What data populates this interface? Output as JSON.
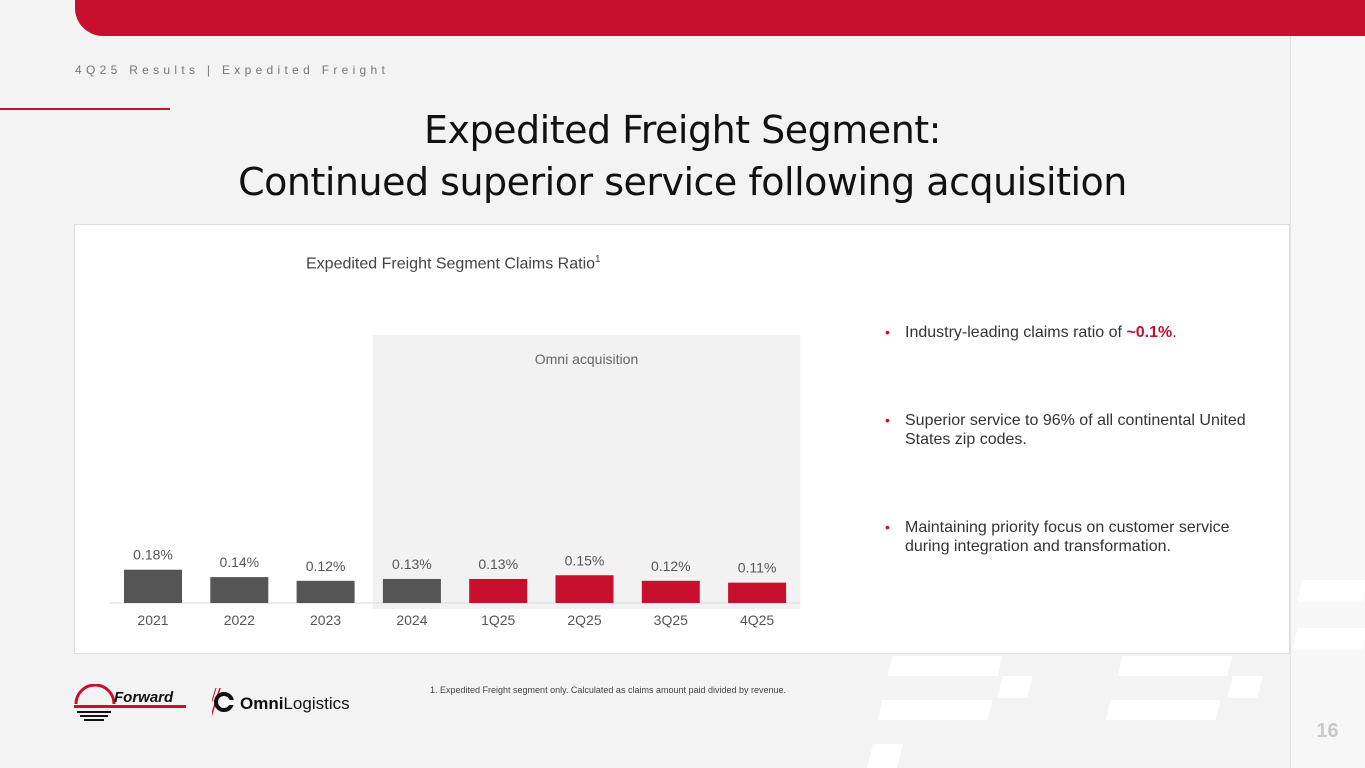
{
  "header": {
    "breadcrumb": "4Q25 Results | Expedited Freight",
    "title_line1": "Expedited Freight Segment:",
    "title_line2": "Continued superior service following acquisition"
  },
  "chart_data": {
    "type": "bar",
    "title": "Expedited Freight Segment Claims Ratio",
    "title_superscript": "1",
    "categories": [
      "2021",
      "2022",
      "2023",
      "2024",
      "1Q25",
      "2Q25",
      "3Q25",
      "4Q25"
    ],
    "values": [
      0.18,
      0.14,
      0.12,
      0.13,
      0.13,
      0.15,
      0.12,
      0.11
    ],
    "value_labels": [
      "0.18%",
      "0.14%",
      "0.12%",
      "0.13%",
      "0.13%",
      "0.15%",
      "0.12%",
      "0.11%"
    ],
    "unit": "%",
    "bar_colors": [
      "#555555",
      "#555555",
      "#555555",
      "#555555",
      "#c8102e",
      "#c8102e",
      "#c8102e",
      "#c8102e"
    ],
    "highlight_region": {
      "label": "Omni acquisition",
      "from_category": "2024",
      "to_category": "4Q25",
      "color": "#f2f2f2"
    },
    "grid": false,
    "legend": "none"
  },
  "bullets": [
    {
      "before": "Industry-leading claims ratio of ",
      "highlight": "~0.1%",
      "after": "."
    },
    {
      "before": "Superior service to 96% of all continental United States zip codes.",
      "highlight": "",
      "after": ""
    },
    {
      "before": "Maintaining priority focus on customer service during integration and transformation.",
      "highlight": "",
      "after": ""
    }
  ],
  "footer": {
    "footnote": "1.  Expedited Freight segment only. Calculated as claims amount paid divided by revenue.",
    "logo_forward": "Forward",
    "logo_omni_bold": "Omni",
    "logo_omni_light": "Logistics",
    "page_number": "16"
  },
  "colors": {
    "brand_red": "#c8102e",
    "bar_gray": "#555555",
    "highlight_bg": "#f2f2f2"
  }
}
